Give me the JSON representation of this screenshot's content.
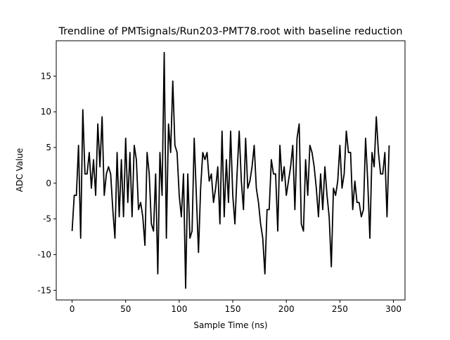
{
  "chart_data": {
    "type": "line",
    "title": "Trendline of PMTsignals/Run203-PMT78.root with baseline reduction",
    "x_label": "Sample Time (ns)",
    "y_label": "ADC Value",
    "x": [
      0,
      2,
      4,
      6,
      8,
      10,
      12,
      14,
      16,
      18,
      20,
      22,
      24,
      26,
      28,
      30,
      32,
      34,
      36,
      38,
      40,
      42,
      44,
      46,
      48,
      50,
      52,
      54,
      56,
      58,
      60,
      62,
      64,
      66,
      68,
      70,
      72,
      74,
      76,
      78,
      80,
      82,
      84,
      86,
      88,
      90,
      92,
      94,
      96,
      98,
      100,
      102,
      104,
      106,
      108,
      110,
      112,
      114,
      116,
      118,
      120,
      122,
      124,
      126,
      128,
      130,
      132,
      134,
      136,
      138,
      140,
      142,
      144,
      146,
      148,
      150,
      152,
      154,
      156,
      158,
      160,
      162,
      164,
      166,
      168,
      170,
      172,
      174,
      176,
      178,
      180,
      182,
      184,
      186,
      188,
      190,
      192,
      194,
      196,
      198,
      200,
      202,
      204,
      206,
      208,
      210,
      212,
      214,
      216,
      218,
      220,
      222,
      224,
      226,
      228,
      230,
      232,
      234,
      236,
      238,
      240,
      242,
      244,
      246,
      248,
      250,
      252,
      254,
      256,
      258,
      260,
      262,
      264,
      266,
      268,
      270,
      272,
      274,
      276,
      278,
      280,
      282,
      284,
      286,
      288,
      290,
      292,
      294,
      296
    ],
    "series": [
      {
        "name": "ADC",
        "color": "#000000",
        "values": [
          -6.7,
          -1.7,
          -1.7,
          5.3,
          -7.7,
          10.3,
          1.3,
          1.3,
          4.3,
          -0.7,
          3.3,
          -1.7,
          8.3,
          2.3,
          9.3,
          -1.7,
          1.3,
          2.3,
          1.3,
          -3.7,
          -7.7,
          4.3,
          -4.7,
          3.3,
          -4.7,
          6.3,
          -2.7,
          4.3,
          -4.7,
          5.3,
          3.3,
          -3.7,
          -2.7,
          -4.7,
          -8.7,
          4.3,
          1.3,
          -5.7,
          -6.7,
          1.3,
          -12.7,
          4.3,
          -1.7,
          18.3,
          -7.7,
          8.3,
          4.3,
          14.3,
          5.3,
          4.3,
          -1.7,
          -4.7,
          1.3,
          -14.7,
          1.3,
          -7.7,
          -6.7,
          6.3,
          -1.7,
          -9.7,
          -0.7,
          4.3,
          3.3,
          4.3,
          0.3,
          1.3,
          -2.7,
          -0.7,
          2.3,
          -5.7,
          7.3,
          -4.7,
          3.3,
          -2.7,
          7.3,
          -1.7,
          -5.7,
          1.3,
          7.3,
          0.3,
          -3.7,
          6.3,
          -0.7,
          0.3,
          2.3,
          5.3,
          -0.7,
          -2.7,
          -5.7,
          -7.7,
          -12.7,
          -3.7,
          -3.7,
          3.3,
          1.3,
          1.3,
          -6.7,
          5.3,
          0.3,
          2.3,
          -1.7,
          0.3,
          2.3,
          5.3,
          -3.7,
          6.3,
          8.3,
          -5.7,
          -6.7,
          3.3,
          -1.7,
          5.3,
          4.3,
          2.3,
          -0.7,
          -4.7,
          1.3,
          -3.7,
          2.3,
          -1.7,
          -4.7,
          -11.7,
          -0.7,
          -1.7,
          0.3,
          5.3,
          -0.7,
          1.3,
          7.3,
          4.3,
          4.3,
          -3.7,
          0.3,
          -2.7,
          -2.7,
          -4.7,
          -3.7,
          6.3,
          0.3,
          -7.7,
          4.3,
          2.3,
          9.3,
          4.3,
          1.3,
          1.3,
          4.3,
          -4.7,
          5.3
        ]
      }
    ],
    "xlim": [
      -14.8,
      310.8
    ],
    "ylim": [
      -16.35,
      19.95
    ],
    "xticks": [
      0,
      50,
      100,
      150,
      200,
      250,
      300
    ],
    "yticks": [
      -15,
      -10,
      -5,
      0,
      5,
      10,
      15
    ],
    "grid": false
  }
}
